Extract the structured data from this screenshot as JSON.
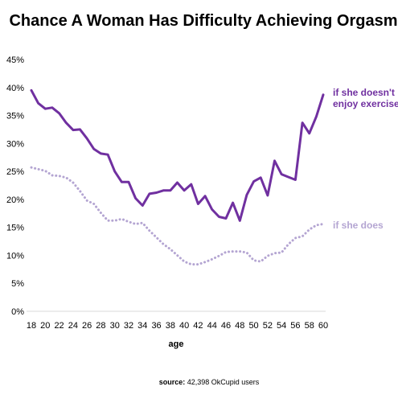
{
  "chart_data": {
    "type": "line",
    "title": "Chance A Woman Has Difficulty Achieving Orgasm",
    "xlabel": "age",
    "ylabel": "",
    "source_label": "source:",
    "source_text": "42,398 OkCupid users",
    "x": [
      18,
      19,
      20,
      21,
      22,
      23,
      24,
      25,
      26,
      27,
      28,
      29,
      30,
      31,
      32,
      33,
      34,
      35,
      36,
      37,
      38,
      39,
      40,
      41,
      42,
      43,
      44,
      45,
      46,
      47,
      48,
      49,
      50,
      51,
      52,
      53,
      54,
      55,
      56,
      57,
      58,
      59,
      60
    ],
    "x_tick_labels": [
      "18",
      "20",
      "22",
      "24",
      "26",
      "28",
      "30",
      "32",
      "34",
      "36",
      "38",
      "40",
      "42",
      "44",
      "46",
      "48",
      "50",
      "52",
      "54",
      "56",
      "58",
      "60"
    ],
    "y_tick_labels": [
      "0%",
      "5%",
      "10%",
      "15%",
      "20%",
      "25%",
      "30%",
      "35%",
      "40%",
      "45%"
    ],
    "ylim": [
      0,
      45
    ],
    "xlim": [
      18,
      60
    ],
    "grid": false,
    "series": [
      {
        "name": "if she doesn't enjoy exercise",
        "label_lines": [
          "if she doesn't",
          "enjoy exercise"
        ],
        "color": "#7030a0",
        "style": "solid",
        "values": [
          39.5,
          37.2,
          36.2,
          36.4,
          35.4,
          33.7,
          32.4,
          32.5,
          30.9,
          29.0,
          28.2,
          28.0,
          25.0,
          23.1,
          23.1,
          20.2,
          18.9,
          21.0,
          21.2,
          21.6,
          21.6,
          23.0,
          21.6,
          22.7,
          19.2,
          20.6,
          18.2,
          16.9,
          16.6,
          19.4,
          16.2,
          20.8,
          23.2,
          23.9,
          20.7,
          26.9,
          24.5,
          24.0,
          23.5,
          33.7,
          31.8,
          34.8,
          38.7
        ]
      },
      {
        "name": "if she does",
        "label_lines": [
          "if she does"
        ],
        "color": "#b4a5d2",
        "style": "dotted",
        "values": [
          25.7,
          25.4,
          25.1,
          24.3,
          24.2,
          23.9,
          23.0,
          21.5,
          19.8,
          19.2,
          17.6,
          16.2,
          16.2,
          16.5,
          16.0,
          15.6,
          15.8,
          14.4,
          13.2,
          12.0,
          11.1,
          10.0,
          8.9,
          8.4,
          8.4,
          8.8,
          9.3,
          9.9,
          10.6,
          10.7,
          10.7,
          10.5,
          9.1,
          8.9,
          9.9,
          10.4,
          10.5,
          12.0,
          13.1,
          13.4,
          14.6,
          15.4,
          15.6
        ]
      }
    ]
  }
}
